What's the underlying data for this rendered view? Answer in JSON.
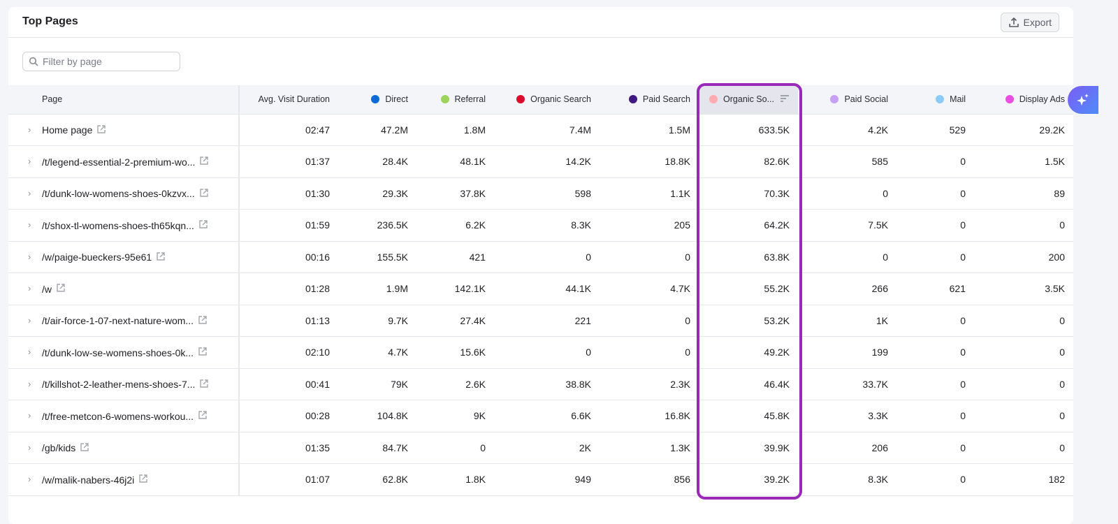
{
  "title": "Top Pages",
  "export_label": "Export",
  "filter_placeholder": "Filter by page",
  "columns": [
    {
      "label": "Page"
    },
    {
      "label": "Avg. Visit Duration"
    },
    {
      "label": "Direct",
      "color": "#0a6bd6"
    },
    {
      "label": "Referral",
      "color": "#9cd35a"
    },
    {
      "label": "Organic Search",
      "color": "#dc0a2e"
    },
    {
      "label": "Paid Search",
      "color": "#3f1a82"
    },
    {
      "label": "Organic So...",
      "color": "#ffabb0",
      "sorted": true
    },
    {
      "label": "Paid Social",
      "color": "#c7a0f5"
    },
    {
      "label": "Mail",
      "color": "#8ccaf8"
    },
    {
      "label": "Display Ads",
      "color": "#e84ee0"
    }
  ],
  "rows": [
    [
      "Home page",
      "02:47",
      "47.2M",
      "1.8M",
      "7.4M",
      "1.5M",
      "633.5K",
      "4.2K",
      "529",
      "29.2K"
    ],
    [
      "/t/legend-essential-2-premium-wo...",
      "01:37",
      "28.4K",
      "48.1K",
      "14.2K",
      "18.8K",
      "82.6K",
      "585",
      "0",
      "1.5K"
    ],
    [
      "/t/dunk-low-womens-shoes-0kzvx...",
      "01:30",
      "29.3K",
      "37.8K",
      "598",
      "1.1K",
      "70.3K",
      "0",
      "0",
      "89"
    ],
    [
      "/t/shox-tl-womens-shoes-th65kqn...",
      "01:59",
      "236.5K",
      "6.2K",
      "8.3K",
      "205",
      "64.2K",
      "7.5K",
      "0",
      "0"
    ],
    [
      "/w/paige-bueckers-95e61",
      "00:16",
      "155.5K",
      "421",
      "0",
      "0",
      "63.8K",
      "0",
      "0",
      "200"
    ],
    [
      "/w",
      "01:28",
      "1.9M",
      "142.1K",
      "44.1K",
      "4.7K",
      "55.2K",
      "266",
      "621",
      "3.5K"
    ],
    [
      "/t/air-force-1-07-next-nature-wom...",
      "01:13",
      "9.7K",
      "27.4K",
      "221",
      "0",
      "53.2K",
      "1K",
      "0",
      "0"
    ],
    [
      "/t/dunk-low-se-womens-shoes-0k...",
      "02:10",
      "4.7K",
      "15.6K",
      "0",
      "0",
      "49.2K",
      "199",
      "0",
      "0"
    ],
    [
      "/t/killshot-2-leather-mens-shoes-7...",
      "00:41",
      "79K",
      "2.6K",
      "38.8K",
      "2.3K",
      "46.4K",
      "33.7K",
      "0",
      "0"
    ],
    [
      "/t/free-metcon-6-womens-workou...",
      "00:28",
      "104.8K",
      "9K",
      "6.6K",
      "16.8K",
      "45.8K",
      "3.3K",
      "0",
      "0"
    ],
    [
      "/gb/kids",
      "01:35",
      "84.7K",
      "0",
      "2K",
      "1.3K",
      "39.9K",
      "206",
      "0",
      "0"
    ],
    [
      "/w/malik-nabers-46j2i",
      "01:07",
      "62.8K",
      "1.8K",
      "949",
      "856",
      "39.2K",
      "8.3K",
      "0",
      "182"
    ]
  ],
  "highlight_color": "#9a28b8"
}
